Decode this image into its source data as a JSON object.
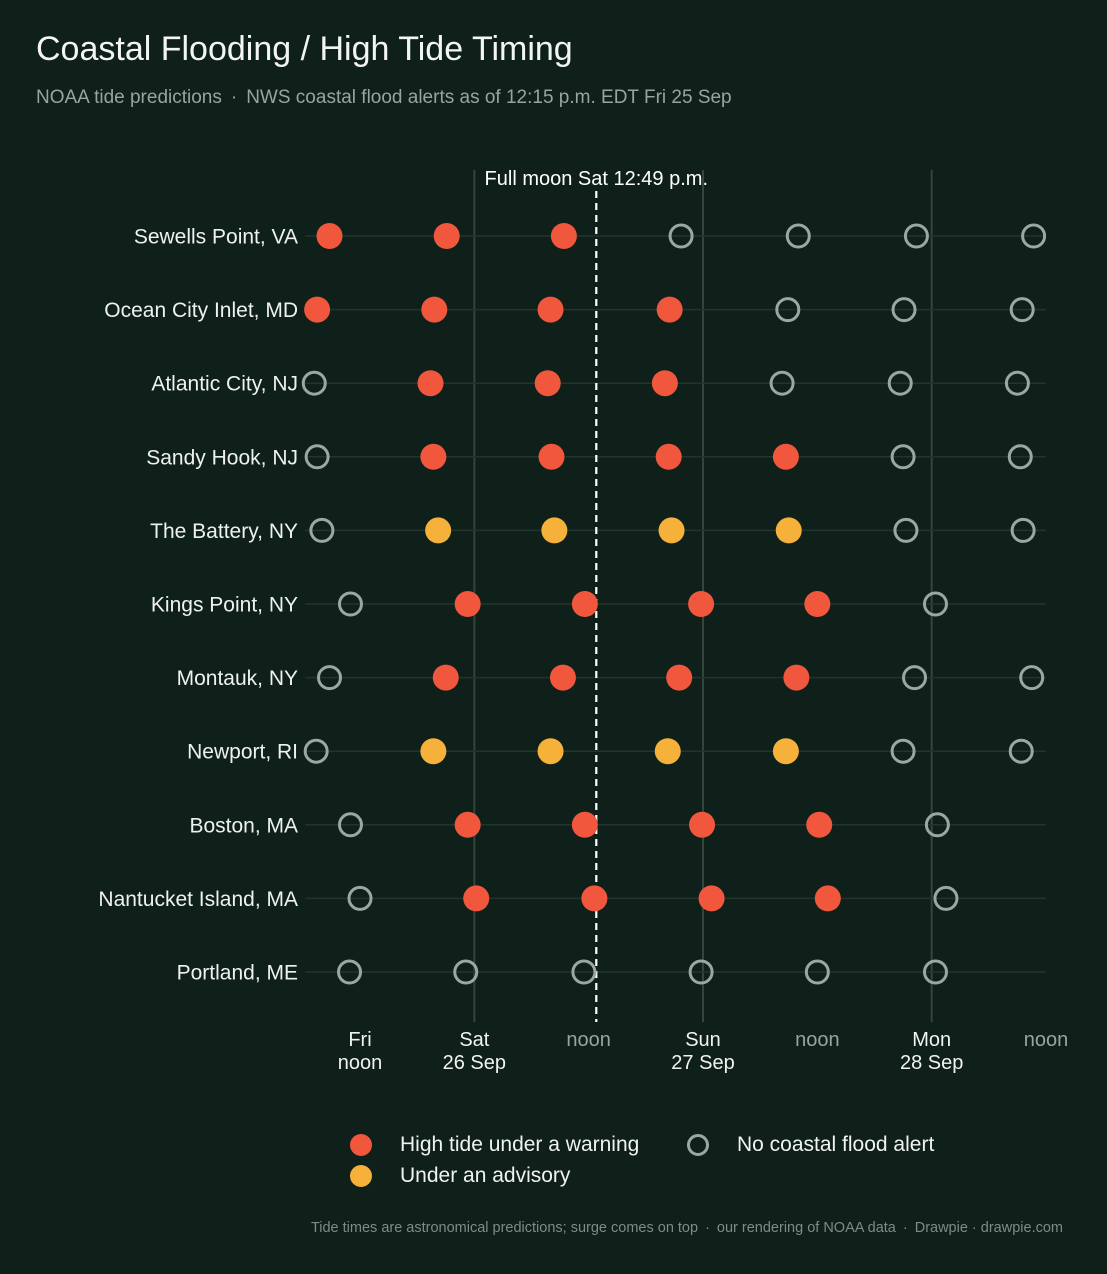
{
  "title": "Coastal Flooding / High Tide Timing",
  "subtitle": {
    "source": "NOAA tide predictions",
    "separator": "·",
    "alerts": "NWS coastal flood alerts as of 12:15 p.m. EDT Fri 25 Sep"
  },
  "footer": {
    "note": "Tide times are astronomical predictions; surge comes on top",
    "separator": "·",
    "credit": "our rendering of NOAA data",
    "brand": "Drawpie · drawpie.com"
  },
  "colors": {
    "background": "#0f1f19",
    "warning": "#f0573d",
    "advisory": "#f5b13a",
    "none_stroke": "#9aa8a2",
    "gridline": "#34453e",
    "row_line": "#23342d",
    "moon_line": "#ffffff"
  },
  "chart_data": {
    "type": "scatter",
    "x_unit": "hours after Fri 25 Sep 12:00 p.m. EDT",
    "xlim": [
      0,
      72
    ],
    "x_ticks": [
      {
        "x": 0,
        "lines": [
          "Fri",
          "noon"
        ],
        "style": "day"
      },
      {
        "x": 12,
        "lines": [
          "Sat",
          "26 Sep"
        ],
        "style": "day"
      },
      {
        "x": 24,
        "lines": [
          "noon"
        ],
        "style": "noon"
      },
      {
        "x": 36,
        "lines": [
          "Sun",
          "27 Sep"
        ],
        "style": "day"
      },
      {
        "x": 48,
        "lines": [
          "noon"
        ],
        "style": "noon"
      },
      {
        "x": 60,
        "lines": [
          "Mon",
          "28 Sep"
        ],
        "style": "day"
      },
      {
        "x": 72,
        "lines": [
          "noon"
        ],
        "style": "noon"
      }
    ],
    "vertical_gridlines_at": [
      12,
      36,
      60
    ],
    "annotation": {
      "label": "Full moon Sat 12:49 p.m.",
      "x": 24.8,
      "style": "dashed line"
    },
    "legend": {
      "placement": "bottom",
      "items": [
        {
          "key": "warning",
          "label": "High tide under a warning"
        },
        {
          "key": "none",
          "label": "No coastal flood alert"
        },
        {
          "key": "advisory",
          "label": "Under an advisory"
        }
      ]
    },
    "stations": [
      {
        "name": "Sewells Point, VA",
        "tides": [
          {
            "x": -3.2,
            "status": "warning"
          },
          {
            "x": 9.1,
            "status": "warning"
          },
          {
            "x": 21.4,
            "status": "warning"
          },
          {
            "x": 33.7,
            "status": "none"
          },
          {
            "x": 46.0,
            "status": "none"
          },
          {
            "x": 58.4,
            "status": "none"
          },
          {
            "x": 70.7,
            "status": "none"
          }
        ]
      },
      {
        "name": "Ocean City Inlet, MD",
        "tides": [
          {
            "x": -4.5,
            "status": "warning"
          },
          {
            "x": 7.8,
            "status": "warning"
          },
          {
            "x": 20.0,
            "status": "warning"
          },
          {
            "x": 32.5,
            "status": "warning"
          },
          {
            "x": 44.9,
            "status": "none"
          },
          {
            "x": 57.1,
            "status": "none"
          },
          {
            "x": 69.5,
            "status": "none"
          }
        ]
      },
      {
        "name": "Atlantic City, NJ",
        "tides": [
          {
            "x": -4.8,
            "status": "none"
          },
          {
            "x": 7.4,
            "status": "warning"
          },
          {
            "x": 19.7,
            "status": "warning"
          },
          {
            "x": 32.0,
            "status": "warning"
          },
          {
            "x": 44.3,
            "status": "none"
          },
          {
            "x": 56.7,
            "status": "none"
          },
          {
            "x": 69.0,
            "status": "none"
          }
        ]
      },
      {
        "name": "Sandy Hook, NJ",
        "tides": [
          {
            "x": -4.5,
            "status": "none"
          },
          {
            "x": 7.7,
            "status": "warning"
          },
          {
            "x": 20.1,
            "status": "warning"
          },
          {
            "x": 32.4,
            "status": "warning"
          },
          {
            "x": 44.7,
            "status": "warning"
          },
          {
            "x": 57.0,
            "status": "none"
          },
          {
            "x": 69.3,
            "status": "none"
          }
        ]
      },
      {
        "name": "The Battery, NY",
        "tides": [
          {
            "x": -4.0,
            "status": "none"
          },
          {
            "x": 8.2,
            "status": "advisory"
          },
          {
            "x": 20.4,
            "status": "advisory"
          },
          {
            "x": 32.7,
            "status": "advisory"
          },
          {
            "x": 45.0,
            "status": "advisory"
          },
          {
            "x": 57.3,
            "status": "none"
          },
          {
            "x": 69.6,
            "status": "none"
          }
        ]
      },
      {
        "name": "Kings Point, NY",
        "tides": [
          {
            "x": -1.0,
            "status": "none"
          },
          {
            "x": 11.3,
            "status": "warning"
          },
          {
            "x": 23.6,
            "status": "warning"
          },
          {
            "x": 35.8,
            "status": "warning"
          },
          {
            "x": 48.0,
            "status": "warning"
          },
          {
            "x": 60.4,
            "status": "none"
          }
        ]
      },
      {
        "name": "Montauk, NY",
        "tides": [
          {
            "x": -3.2,
            "status": "none"
          },
          {
            "x": 9.0,
            "status": "warning"
          },
          {
            "x": 21.3,
            "status": "warning"
          },
          {
            "x": 33.5,
            "status": "warning"
          },
          {
            "x": 45.8,
            "status": "warning"
          },
          {
            "x": 58.2,
            "status": "none"
          },
          {
            "x": 70.5,
            "status": "none"
          }
        ]
      },
      {
        "name": "Newport, RI",
        "tides": [
          {
            "x": -4.6,
            "status": "none"
          },
          {
            "x": 7.7,
            "status": "advisory"
          },
          {
            "x": 20.0,
            "status": "advisory"
          },
          {
            "x": 32.3,
            "status": "advisory"
          },
          {
            "x": 44.7,
            "status": "advisory"
          },
          {
            "x": 57.0,
            "status": "none"
          },
          {
            "x": 69.4,
            "status": "none"
          }
        ]
      },
      {
        "name": "Boston, MA",
        "tides": [
          {
            "x": -1.0,
            "status": "none"
          },
          {
            "x": 11.3,
            "status": "warning"
          },
          {
            "x": 23.6,
            "status": "warning"
          },
          {
            "x": 35.9,
            "status": "warning"
          },
          {
            "x": 48.2,
            "status": "warning"
          },
          {
            "x": 60.6,
            "status": "none"
          }
        ]
      },
      {
        "name": "Nantucket Island, MA",
        "tides": [
          {
            "x": 0.0,
            "status": "none"
          },
          {
            "x": 12.2,
            "status": "warning"
          },
          {
            "x": 24.6,
            "status": "warning"
          },
          {
            "x": 36.9,
            "status": "warning"
          },
          {
            "x": 49.1,
            "status": "warning"
          },
          {
            "x": 61.5,
            "status": "none"
          }
        ]
      },
      {
        "name": "Portland, ME",
        "tides": [
          {
            "x": -1.1,
            "status": "none"
          },
          {
            "x": 11.1,
            "status": "none"
          },
          {
            "x": 23.5,
            "status": "none"
          },
          {
            "x": 35.8,
            "status": "none"
          },
          {
            "x": 48.0,
            "status": "none"
          },
          {
            "x": 60.4,
            "status": "none"
          }
        ]
      }
    ]
  }
}
